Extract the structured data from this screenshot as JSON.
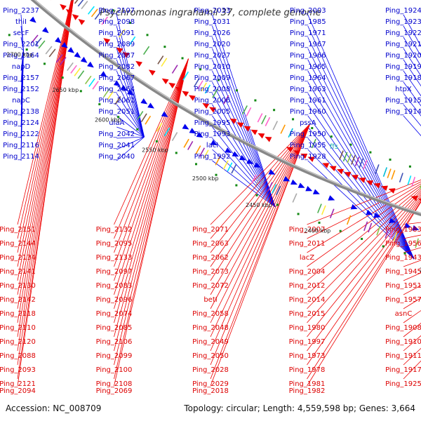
{
  "title": "Psychromonas ingrahamii 37, complete genome",
  "footer": {
    "accession": "Accession: NC_008709",
    "summary": "Topology: circular; Length: 4,559,598 bp; Genes: 3,664"
  },
  "colors": {
    "forward": "#0000ee",
    "reverse": "#ee0000",
    "backbone": "#888888",
    "tick": "#118811",
    "teal_label": "#20b0b0"
  },
  "ticks": [
    "2700 kbp",
    "2650 kbp",
    "2600 kbp",
    "2550 kbp",
    "2500 kbp",
    "2450 kbp",
    "2400 kbp",
    "2350 kbp"
  ],
  "top_labels": [
    "Ping_2237",
    "thiI",
    "secF",
    "Ping_2201",
    "Ping_2164",
    "napD",
    "Ping_2157",
    "Ping_2152",
    "napC",
    "Ping_2138",
    "Ping_2124",
    "Ping_2122",
    "Ping_2116",
    "Ping_2114",
    "Ping_2107",
    "Ping_2098",
    "Ping_2091",
    "Ping_2089",
    "Ping_2087",
    "Ping_2082",
    "Ping_2067",
    "Ping_2064",
    "Ping_2061",
    "Ping_2051",
    "ulaA",
    "Ping_2042",
    "Ping_2041",
    "Ping_2040",
    "Ping_2033",
    "Ping_2031",
    "Ping_2026",
    "Ping_2020",
    "Ping_2027",
    "Ping_2010",
    "Ping_2009",
    "Ping_2008",
    "Ping_2006",
    "Ping_2005",
    "Ping_1995",
    "Ping_1993",
    "lacI",
    "Ping_1992",
    "Ping_2003",
    "Ping_1985",
    "Ping_1971",
    "Ping_1967",
    "Ping_1966",
    "Ping_1965",
    "Ping_1964",
    "Ping_1963",
    "Ping_1961",
    "Ping_1960",
    "pssA",
    "Ping_1950",
    "Ping_1955",
    "Ping_1928",
    "Ping_1924",
    "Ping_1923",
    "Ping_1922",
    "Ping_1921",
    "Ping_1920",
    "Ping_1919",
    "Ping_1918",
    "htpX",
    "Ping_1915",
    "Ping_1914"
  ],
  "teal_label": "ffs",
  "bottom_labels": [
    "Ping_2151",
    "Ping_2144",
    "Ping_2134",
    "Ping_2141",
    "Ping_2130",
    "Ping_2142",
    "Ping_2118",
    "Ping_2110",
    "Ping_2120",
    "Ping_2088",
    "Ping_2093",
    "Ping_2121",
    "Ping_2094",
    "Ping_2132",
    "Ping_2095",
    "Ping_2133",
    "Ping_2097",
    "Ping_2083",
    "Ping_2096",
    "Ping_2074",
    "Ping_2085",
    "Ping_2106",
    "Ping_2099",
    "Ping_2100",
    "Ping_2108",
    "Ping_2069",
    "Ping_2071",
    "Ping_2063",
    "Ping_2062",
    "Ping_2073",
    "Ping_2072",
    "betI",
    "Ping_2058",
    "Ping_2048",
    "Ping_2049",
    "Ping_2050",
    "Ping_2028",
    "Ping_2029",
    "Ping_2018",
    "Ping_2007",
    "Ping_2011",
    "lacZ",
    "Ping_2004",
    "Ping_2012",
    "Ping_2014",
    "Ping_2015",
    "Ping_1980",
    "Ping_1997",
    "Ping_1973",
    "Ping_1978",
    "Ping_1981",
    "Ping_1982",
    "Ping_1983",
    "Ping_1956",
    "Ping_1943",
    "Ping_1945",
    "Ping_1951",
    "Ping_1957",
    "asnC",
    "Ping_1908",
    "Ping_1910",
    "Ping_1911",
    "Ping_1917",
    "Ping_1925"
  ]
}
